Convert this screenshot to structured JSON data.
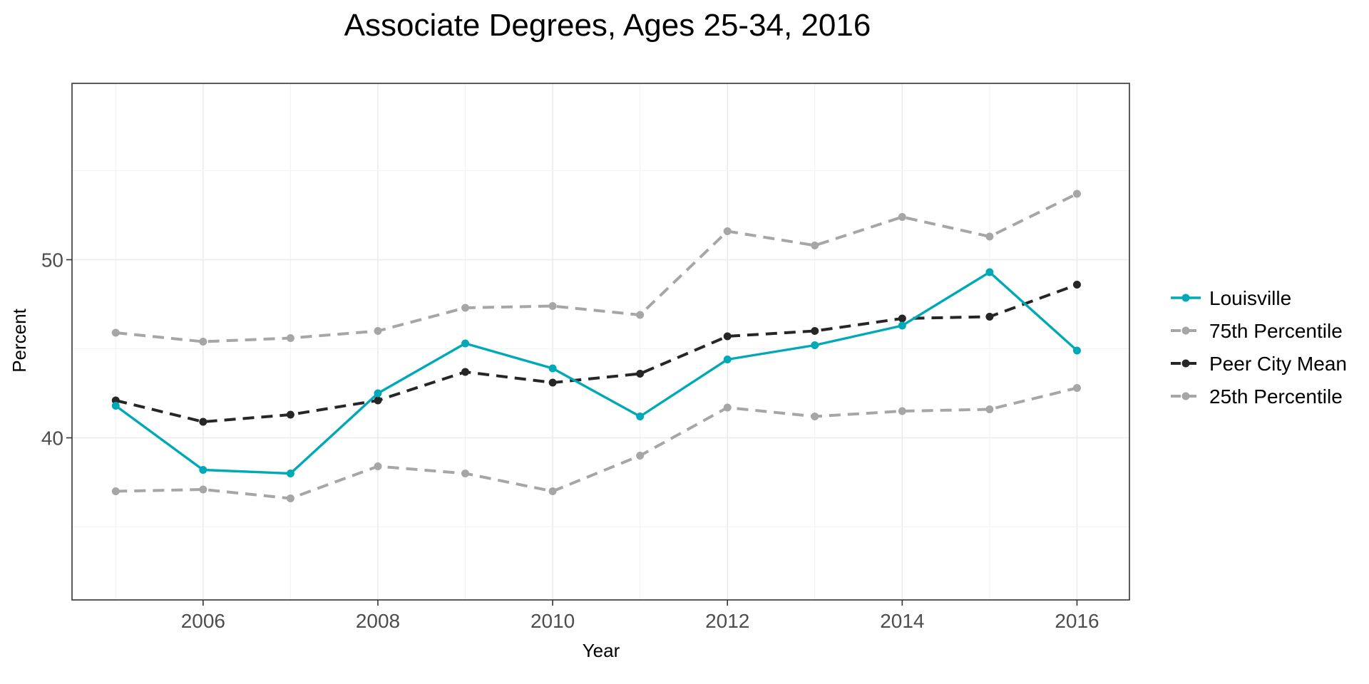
{
  "chart_data": {
    "type": "line",
    "title": "Associate Degrees, Ages 25-34, 2016",
    "xlabel": "Year",
    "ylabel": "Percent",
    "x": [
      2005,
      2006,
      2007,
      2008,
      2009,
      2010,
      2011,
      2012,
      2013,
      2014,
      2015,
      2016
    ],
    "xlim": [
      2004.5,
      2016.6
    ],
    "ylim": [
      30.9,
      59.9
    ],
    "x_ticks": [
      2006,
      2008,
      2010,
      2012,
      2014,
      2016
    ],
    "y_ticks": [
      40,
      50
    ],
    "grid": true,
    "legend_position": "right",
    "series": [
      {
        "name": "Louisville",
        "color": "#00a9b7",
        "dashed": false,
        "values": [
          41.8,
          38.2,
          38.0,
          42.5,
          45.3,
          43.9,
          41.2,
          44.4,
          45.2,
          46.3,
          49.3,
          44.9
        ]
      },
      {
        "name": "75th Percentile",
        "color": "#a6a6a6",
        "dashed": true,
        "values": [
          45.9,
          45.4,
          45.6,
          46.0,
          47.3,
          47.4,
          46.9,
          51.6,
          50.8,
          52.4,
          51.3,
          53.7
        ]
      },
      {
        "name": "Peer City Mean",
        "color": "#262626",
        "dashed": true,
        "values": [
          42.1,
          40.9,
          41.3,
          42.1,
          43.7,
          43.1,
          43.6,
          45.7,
          46.0,
          46.7,
          46.8,
          48.6
        ]
      },
      {
        "name": "25th Percentile",
        "color": "#a6a6a6",
        "dashed": true,
        "values": [
          37.0,
          37.1,
          36.6,
          38.4,
          38.0,
          37.0,
          39.0,
          41.7,
          41.2,
          41.5,
          41.6,
          42.8
        ]
      }
    ]
  }
}
